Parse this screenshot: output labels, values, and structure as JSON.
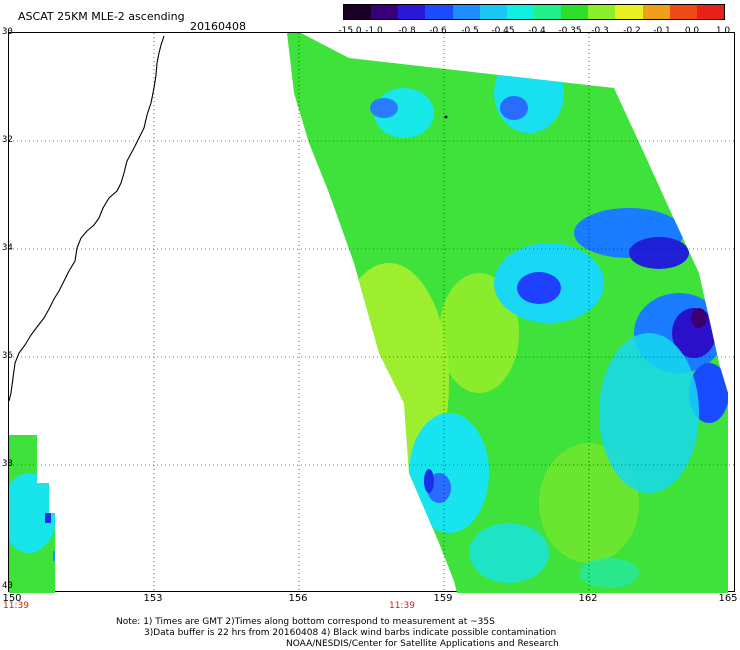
{
  "header": {
    "title": "ASCAT 25KM MLE-2 ascending",
    "date": "20160408"
  },
  "colorbar": {
    "labels": [
      "-15.0",
      "-1.0",
      "-0.8",
      "-0.6",
      "-0.5",
      "-0.45",
      "-0.4",
      "-0.35",
      "-0.3",
      "-0.2",
      "-0.1",
      "0.0",
      "1.0"
    ],
    "colors": [
      "#1a0026",
      "#3a007a",
      "#2a1ad8",
      "#1c4cff",
      "#1f8cff",
      "#19c8f5",
      "#10f0e0",
      "#1ef08a",
      "#2ddf2a",
      "#8cf028",
      "#e8f020",
      "#f0a018",
      "#ee4a18",
      "#e8201a"
    ]
  },
  "map": {
    "lat_labels": [
      "30",
      "32",
      "34",
      "36",
      "38",
      "40"
    ],
    "lon_labels": [
      "150",
      "153",
      "156",
      "159",
      "162",
      "165"
    ],
    "pass_times": [
      "11:39",
      "11:39"
    ]
  },
  "notes": {
    "line1": "Note: 1) Times are GMT 2)Times along bottom correspond to measurement at ~35S",
    "line2": "3)Data buffer is 22 hrs from 20160408 4) Black wind barbs indicate possible contamination",
    "line3": "NOAA/NESDIS/Center for Satellite Applications and Research"
  }
}
